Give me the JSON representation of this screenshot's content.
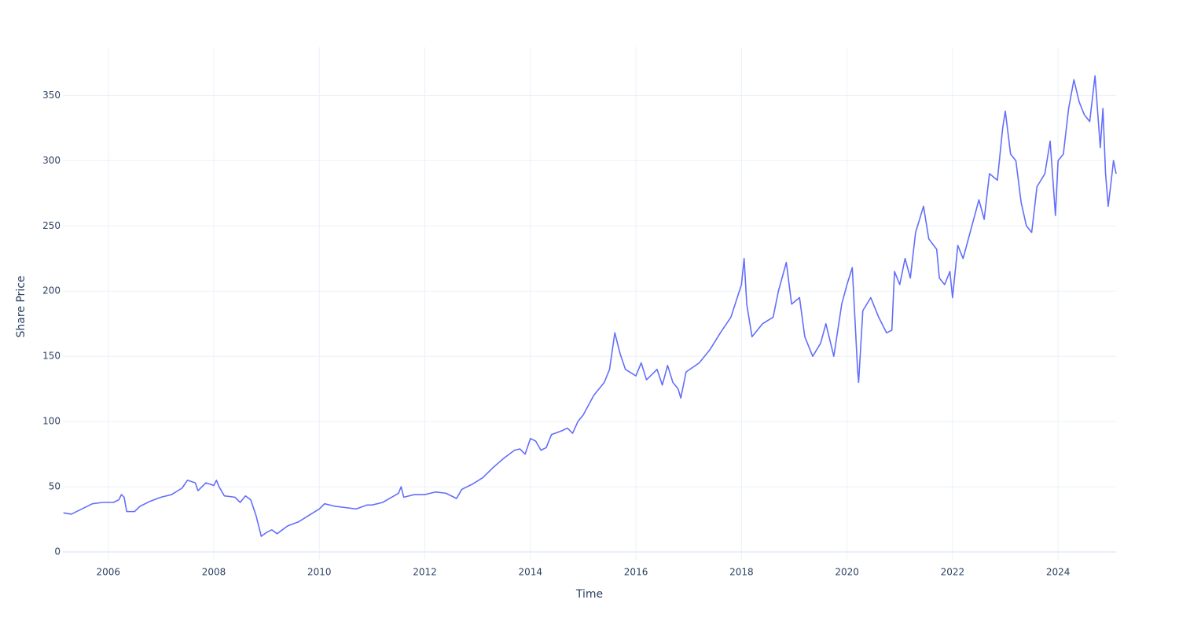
{
  "chart_data": {
    "type": "line",
    "x_label": "Time",
    "y_label": "Share Price",
    "x": [
      2005.15,
      2005.3,
      2005.5,
      2005.7,
      2005.9,
      2006.1,
      2006.2,
      2006.25,
      2006.3,
      2006.35,
      2006.5,
      2006.6,
      2006.8,
      2007.0,
      2007.2,
      2007.4,
      2007.5,
      2007.65,
      2007.7,
      2007.85,
      2008.0,
      2008.05,
      2008.1,
      2008.2,
      2008.4,
      2008.5,
      2008.6,
      2008.7,
      2008.8,
      2008.9,
      2009.0,
      2009.1,
      2009.2,
      2009.4,
      2009.6,
      2009.8,
      2010.0,
      2010.1,
      2010.3,
      2010.5,
      2010.7,
      2010.9,
      2011.0,
      2011.2,
      2011.5,
      2011.55,
      2011.6,
      2011.8,
      2012.0,
      2012.2,
      2012.4,
      2012.6,
      2012.7,
      2012.9,
      2013.1,
      2013.3,
      2013.5,
      2013.7,
      2013.8,
      2013.9,
      2014.0,
      2014.1,
      2014.2,
      2014.3,
      2014.4,
      2014.6,
      2014.7,
      2014.8,
      2014.9,
      2015.0,
      2015.2,
      2015.4,
      2015.5,
      2015.6,
      2015.7,
      2015.8,
      2016.0,
      2016.1,
      2016.2,
      2016.4,
      2016.5,
      2016.6,
      2016.7,
      2016.8,
      2016.85,
      2016.95,
      2017.2,
      2017.4,
      2017.6,
      2017.8,
      2018.0,
      2018.05,
      2018.1,
      2018.2,
      2018.4,
      2018.6,
      2018.7,
      2018.85,
      2018.95,
      2019.1,
      2019.2,
      2019.35,
      2019.5,
      2019.6,
      2019.75,
      2019.9,
      2020.0,
      2020.1,
      2020.2,
      2020.22,
      2020.3,
      2020.45,
      2020.6,
      2020.75,
      2020.85,
      2020.9,
      2021.0,
      2021.1,
      2021.2,
      2021.3,
      2021.45,
      2021.55,
      2021.7,
      2021.75,
      2021.85,
      2021.95,
      2022.0,
      2022.1,
      2022.2,
      2022.3,
      2022.4,
      2022.5,
      2022.6,
      2022.7,
      2022.85,
      2022.95,
      2023.0,
      2023.1,
      2023.2,
      2023.3,
      2023.4,
      2023.5,
      2023.6,
      2023.75,
      2023.85,
      2023.95,
      2024.0,
      2024.1,
      2024.2,
      2024.3,
      2024.4,
      2024.5,
      2024.6,
      2024.7,
      2024.8,
      2024.85,
      2024.9,
      2024.95,
      2025.0,
      2025.05,
      2025.1
    ],
    "series": [
      {
        "color": "#636efa",
        "values": [
          30,
          29,
          33,
          37,
          38,
          38,
          40,
          44,
          42,
          31,
          31,
          35,
          39,
          42,
          44,
          49,
          55,
          53,
          47,
          53,
          51,
          55,
          50,
          43,
          42,
          38,
          43,
          40,
          28,
          12,
          15,
          17,
          14,
          20,
          23,
          28,
          33,
          37,
          35,
          34,
          33,
          36,
          36,
          38,
          45,
          50,
          42,
          44,
          44,
          46,
          45,
          41,
          48,
          52,
          57,
          65,
          72,
          78,
          79,
          75,
          87,
          85,
          78,
          80,
          90,
          93,
          95,
          91,
          100,
          105,
          120,
          130,
          140,
          168,
          152,
          140,
          135,
          145,
          132,
          140,
          128,
          143,
          130,
          125,
          118,
          138,
          145,
          155,
          168,
          180,
          205,
          225,
          190,
          165,
          175,
          180,
          200,
          222,
          190,
          195,
          165,
          150,
          160,
          175,
          150,
          190,
          205,
          218,
          140,
          130,
          185,
          195,
          180,
          168,
          170,
          215,
          205,
          225,
          210,
          245,
          265,
          240,
          232,
          210,
          205,
          215,
          195,
          235,
          225,
          240,
          255,
          270,
          255,
          290,
          285,
          325,
          338,
          305,
          300,
          268,
          250,
          245,
          280,
          290,
          315,
          258,
          300,
          305,
          340,
          362,
          345,
          335,
          330,
          365,
          310,
          340,
          290,
          265,
          282,
          300,
          290
        ]
      }
    ],
    "xlim": [
      2005.14,
      2025.1
    ],
    "xticks": [
      2006,
      2008,
      2010,
      2012,
      2014,
      2016,
      2018,
      2020,
      2022,
      2024
    ],
    "ylim": [
      -6,
      387
    ],
    "yticks": [
      0,
      50,
      100,
      150,
      200,
      250,
      300,
      350
    ],
    "grid": true
  }
}
